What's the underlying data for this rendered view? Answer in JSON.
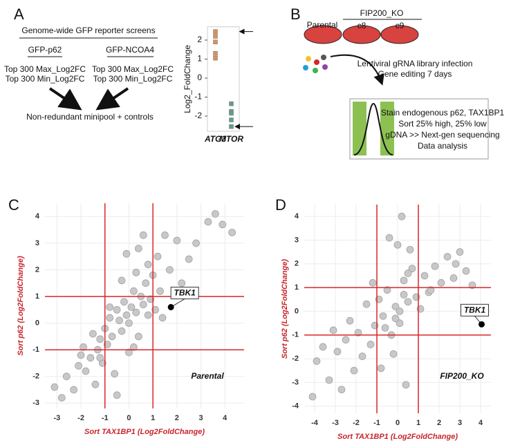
{
  "panels": {
    "A": {
      "label": "A",
      "title": "Genome-wide GFP reporter screens",
      "left": {
        "name": "GFP-p62",
        "lines": [
          "Top 300 Max_Log2FC",
          "Top 300 Min_Log2FC"
        ]
      },
      "right": {
        "name": "GFP-NCOA4",
        "lines": [
          "Top 300 Max_Log2FC",
          "Top 300 Min_Log2FC"
        ]
      },
      "result": "Non-redundant minipool + controls"
    },
    "B": {
      "label": "B",
      "parental": "Parental",
      "ko": "FIP200_KO",
      "clones": [
        "c8",
        "c9"
      ],
      "steps": [
        "Lentiviral gRNA library infection",
        "Gene editing 7 days"
      ],
      "box": [
        "Stain endogenous p62, TAX1BP1",
        "Sort 25% high, 25% low",
        "gDNA >> Next-gen sequencing",
        "Data analysis"
      ]
    },
    "C": {
      "label": "C"
    },
    "D": {
      "label": "D"
    }
  },
  "chart_data": [
    {
      "type": "strip",
      "y_label": "Log2_FoldChange",
      "categories": [
        "ATG3",
        "MTOR"
      ],
      "values": [
        [
          2.45,
          2.2,
          1.9,
          1.3,
          1.05
        ],
        [
          -1.35,
          -1.75,
          -1.85,
          -2.2,
          -2.55
        ]
      ],
      "colors": [
        "#d9915a",
        "#5f9e8e"
      ],
      "ylim": [
        -2.8,
        2.7
      ],
      "yticks": [
        -2,
        -1,
        0,
        1,
        2
      ]
    },
    {
      "type": "scatter",
      "x_label": "Sort TAX1BP1 (Log2FoldChange)",
      "y_label": "Sort p62  (Log2FoldChange)",
      "label": "Parental",
      "x": [
        -3.1,
        -2.8,
        -2.6,
        -2.3,
        -2.1,
        -2,
        -1.9,
        -1.8,
        -1.6,
        -1.5,
        -1.4,
        -1.3,
        -1.2,
        -1.1,
        -1,
        -0.9,
        -0.8,
        -0.7,
        -0.6,
        -0.5,
        -0.4,
        -0.3,
        -0.2,
        -0.1,
        0,
        0.1,
        0.2,
        0.3,
        0.4,
        0.5,
        0.6,
        0.7,
        0.8,
        0.9,
        1,
        1.1,
        1.2,
        1.3,
        1.5,
        1.7,
        2,
        2.2,
        2.5,
        2.8,
        3.3,
        3.6,
        3.9,
        4.3,
        -0.3,
        0.2,
        -0.5,
        0.4,
        -1.2,
        0.8,
        -0.8,
        0.3,
        0,
        -0.1,
        0.6,
        1.4
      ],
      "y": [
        -2.4,
        -2.8,
        -2,
        -2.5,
        -1.6,
        -1.2,
        -0.9,
        -1.8,
        -1.3,
        -0.4,
        -2.3,
        -1,
        -0.6,
        -1.5,
        -0.2,
        -0.8,
        0.2,
        -0.5,
        -1.9,
        0.5,
        0.1,
        -0.3,
        0.8,
        0.3,
        0,
        0.6,
        1.2,
        0.4,
        2.8,
        1,
        0.7,
        1.5,
        2.2,
        0.9,
        1.8,
        0.5,
        2.5,
        1.2,
        3.3,
        2,
        3.1,
        1.5,
        2.4,
        3,
        3.8,
        4.1,
        3.7,
        3.4,
        1.6,
        -0.9,
        -2.7,
        -0.5,
        -1.3,
        0.3,
        0.6,
        1.9,
        -1.1,
        2.6,
        3.3,
        0.2
      ],
      "color": "#c8c8c8",
      "line_color": "#d62728",
      "hlines": [
        -1,
        1
      ],
      "vlines": [
        -1,
        1
      ],
      "annotations": [
        {
          "text": "TBK1",
          "x": 1.75,
          "y": 0.6
        }
      ],
      "xlim": [
        -3.5,
        4.8
      ],
      "ylim": [
        -3.2,
        4.5
      ],
      "xticks": [
        -3,
        -2,
        -1,
        0,
        1,
        2,
        3,
        4
      ],
      "yticks": [
        -3,
        -2,
        -1,
        0,
        1,
        2,
        3,
        4
      ],
      "grid": true
    },
    {
      "type": "scatter",
      "x_label": "Sort TAX1BP1 (Log2FoldChange)",
      "y_label": "Sort p62  (Log2FoldChange)",
      "label": "FIP200_KO",
      "x": [
        -4.1,
        -3.9,
        -3.6,
        -3.3,
        -3.1,
        -2.9,
        -2.7,
        -2.5,
        -2.3,
        -2.1,
        -1.9,
        -1.7,
        -1.5,
        -1.3,
        -1.1,
        -0.9,
        -0.7,
        -0.5,
        -0.3,
        -0.1,
        0.1,
        0.3,
        0.5,
        0.7,
        0.9,
        1.1,
        1.3,
        1.5,
        1.8,
        2.1,
        2.4,
        2.7,
        3,
        3.3,
        3.6,
        -0.4,
        0.2,
        0,
        -0.2,
        0.4,
        -1.2,
        0.6,
        -0.8,
        0.3,
        -0.6,
        0.1,
        0.5,
        -0.1,
        1.6,
        2.8
      ],
      "y": [
        -3.6,
        -2.1,
        -1.5,
        -2.9,
        -0.8,
        -1.7,
        -3.3,
        -1.2,
        -0.4,
        -2.5,
        -0.9,
        -1.9,
        0.3,
        -1.4,
        -0.6,
        0.5,
        -0.2,
        0.9,
        -1,
        0.2,
        -0.5,
        1.3,
        0.4,
        1.8,
        0.6,
        0.1,
        1.5,
        0.8,
        1.9,
        1.2,
        2.3,
        1.4,
        2.5,
        1.7,
        1.1,
        3.1,
        4,
        2.8,
        -1.8,
        -3.1,
        1.2,
        2.6,
        -2.4,
        0.7,
        -0.7,
        0,
        1.6,
        -0.3,
        0.9,
        2
      ],
      "color": "#c8c8c8",
      "line_color": "#d62728",
      "hlines": [
        -1,
        1
      ],
      "vlines": [
        -1,
        1
      ],
      "annotations": [
        {
          "text": "TBK1",
          "x": 4.05,
          "y": -0.55
        }
      ],
      "xlim": [
        -4.5,
        4.5
      ],
      "ylim": [
        -4.3,
        4.5
      ],
      "xticks": [
        -4,
        -3,
        -2,
        -1,
        0,
        1,
        2,
        3,
        4
      ],
      "yticks": [
        -4,
        -3,
        -2,
        -1,
        0,
        1,
        2,
        3,
        4
      ],
      "grid": true
    }
  ]
}
